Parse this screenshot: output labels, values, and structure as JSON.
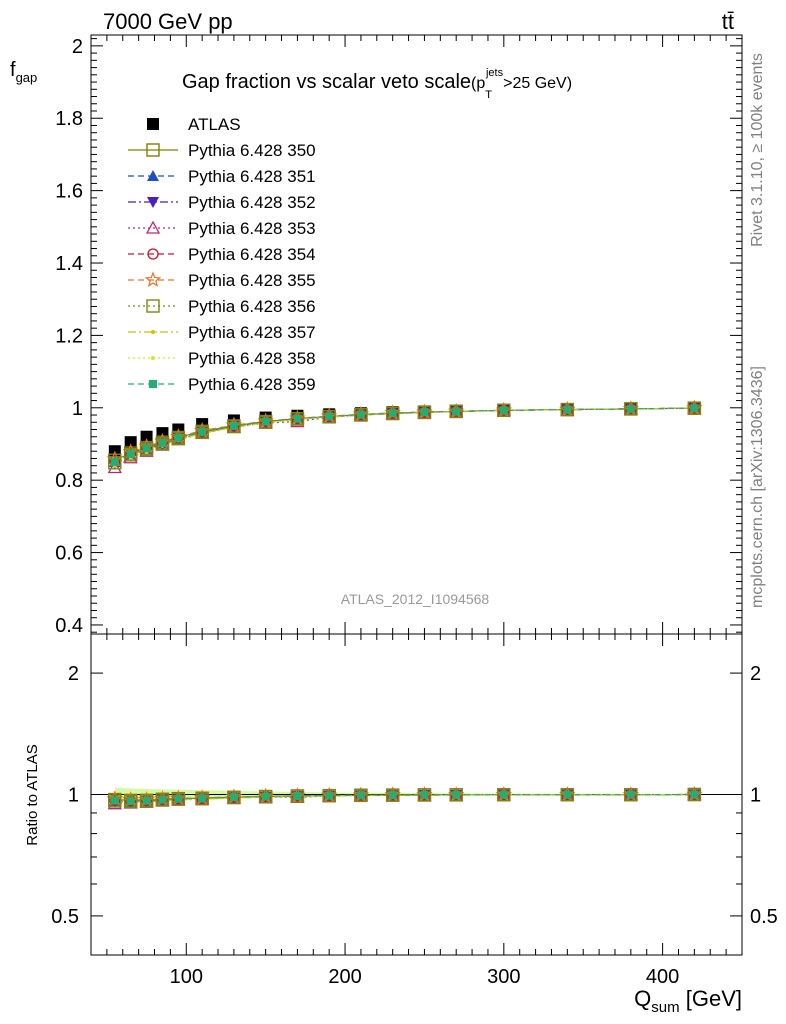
{
  "header": {
    "energy_label": "7000 GeV pp",
    "process_label": "tt̄"
  },
  "side_labels": {
    "rivet": "Rivet 3.1.10, ≥ 100k events",
    "mcplots": "mcplots.cern.ch [arXiv:1306.3436]"
  },
  "watermark": "ATLAS_2012_I1094568",
  "colors": {
    "ATLAS": "#000000",
    "s350": "#808000",
    "s351": "#1f4fbf",
    "s352": "#4b1fbf",
    "s353": "#c0247a",
    "s354": "#d0102a",
    "s355": "#f07020",
    "s356": "#7a8a10",
    "s357": "#c8c800",
    "s358": "#d8e820",
    "s359": "#20b070",
    "band": "#d8f8a0"
  },
  "chart_data": [
    {
      "type": "scatter",
      "title": "Gap fraction vs scalar veto scale",
      "title_suffix": "(p",
      "title_sub": "T",
      "title_sup": "jets",
      "title_tail": ">25 GeV)",
      "ylabel": "f",
      "ylabel_sub": "gap",
      "xlim": [
        40,
        450
      ],
      "ylim": [
        0.375,
        2.03
      ],
      "y_ticks": [
        0.4,
        0.6,
        0.8,
        1,
        1.2,
        1.4,
        1.6,
        1.8,
        2
      ],
      "y_tick_labels": [
        "0.4",
        "0.6",
        "0.8",
        "1",
        "1.2",
        "1.4",
        "1.6",
        "1.8",
        "2"
      ],
      "x": [
        55,
        65,
        75,
        85,
        95,
        110,
        130,
        150,
        170,
        190,
        210,
        230,
        250,
        270,
        300,
        340,
        380,
        420
      ],
      "legend_placement": "top-left",
      "series": [
        {
          "name": "ATLAS",
          "key": "ATLAS",
          "marker": "fsquare",
          "line": "none",
          "values": [
            0.88,
            0.905,
            0.92,
            0.93,
            0.94,
            0.955,
            0.965,
            0.973,
            0.978,
            0.982,
            0.985,
            0.988,
            0.99,
            0.992,
            0.994,
            0.996,
            0.998,
            0.999
          ]
        },
        {
          "name": "Pythia 6.428 350",
          "key": "s350",
          "marker": "osquare",
          "line": "solid",
          "values": [
            0.855,
            0.875,
            0.89,
            0.905,
            0.918,
            0.935,
            0.95,
            0.962,
            0.97,
            0.976,
            0.981,
            0.985,
            0.988,
            0.99,
            0.993,
            0.995,
            0.997,
            0.999
          ]
        },
        {
          "name": "Pythia 6.428 351",
          "key": "s351",
          "marker": "ftriangle",
          "line": "dashed",
          "values": [
            0.85,
            0.872,
            0.888,
            0.903,
            0.917,
            0.934,
            0.95,
            0.962,
            0.97,
            0.976,
            0.981,
            0.985,
            0.988,
            0.99,
            0.993,
            0.995,
            0.997,
            0.999
          ]
        },
        {
          "name": "Pythia 6.428 352",
          "key": "s352",
          "marker": "ftrianglev",
          "line": "dashdot",
          "values": [
            0.845,
            0.868,
            0.885,
            0.9,
            0.915,
            0.932,
            0.948,
            0.96,
            0.969,
            0.975,
            0.98,
            0.984,
            0.987,
            0.99,
            0.993,
            0.995,
            0.997,
            0.999
          ]
        },
        {
          "name": "Pythia 6.428 353",
          "key": "s353",
          "marker": "otriangle",
          "line": "dotted",
          "values": [
            0.835,
            0.862,
            0.88,
            0.897,
            0.912,
            0.93,
            0.946,
            0.958,
            0.962,
            0.974,
            0.98,
            0.984,
            0.987,
            0.99,
            0.993,
            0.995,
            0.997,
            0.999
          ]
        },
        {
          "name": "Pythia 6.428 354",
          "key": "s354",
          "marker": "ocircle",
          "line": "dashed",
          "values": [
            0.852,
            0.874,
            0.89,
            0.905,
            0.918,
            0.935,
            0.95,
            0.962,
            0.97,
            0.976,
            0.981,
            0.985,
            0.988,
            0.99,
            0.993,
            0.995,
            0.997,
            0.999
          ]
        },
        {
          "name": "Pythia 6.428 355",
          "key": "s355",
          "marker": "ostar",
          "line": "dashed",
          "values": [
            0.858,
            0.878,
            0.893,
            0.907,
            0.92,
            0.937,
            0.952,
            0.963,
            0.971,
            0.977,
            0.982,
            0.986,
            0.988,
            0.99,
            0.993,
            0.995,
            0.997,
            0.999
          ]
        },
        {
          "name": "Pythia 6.428 356",
          "key": "s356",
          "marker": "osquare",
          "line": "dotted",
          "values": [
            0.848,
            0.87,
            0.886,
            0.901,
            0.915,
            0.932,
            0.948,
            0.96,
            0.969,
            0.975,
            0.98,
            0.984,
            0.987,
            0.99,
            0.993,
            0.995,
            0.997,
            0.999
          ]
        },
        {
          "name": "Pythia 6.428 357",
          "key": "s357",
          "marker": "dot",
          "line": "dashdot",
          "values": [
            0.845,
            0.866,
            0.882,
            0.898,
            0.912,
            0.93,
            0.946,
            0.959,
            0.968,
            0.975,
            0.98,
            0.984,
            0.987,
            0.99,
            0.993,
            0.995,
            0.997,
            0.999
          ]
        },
        {
          "name": "Pythia 6.428 358",
          "key": "s358",
          "marker": "dot",
          "line": "dotted",
          "values": [
            0.84,
            0.862,
            0.878,
            0.895,
            0.91,
            0.928,
            0.945,
            0.958,
            0.967,
            0.974,
            0.979,
            0.984,
            0.987,
            0.99,
            0.993,
            0.995,
            0.997,
            0.999
          ]
        },
        {
          "name": "Pythia 6.428 359",
          "key": "s359",
          "marker": "fsquare_small",
          "line": "dashed",
          "values": [
            0.85,
            0.872,
            0.888,
            0.903,
            0.917,
            0.934,
            0.95,
            0.962,
            0.97,
            0.976,
            0.981,
            0.985,
            0.988,
            0.99,
            0.993,
            0.995,
            0.997,
            0.999
          ]
        }
      ]
    },
    {
      "type": "scatter",
      "ylabel": "Ratio to ATLAS",
      "xlabel": "Q",
      "xlabel_sub": "sum",
      "xlabel_unit": " [GeV]",
      "log_y": true,
      "xlim": [
        40,
        450
      ],
      "ylim": [
        0.4,
        2.5
      ],
      "x_ticks": [
        100,
        200,
        300,
        400
      ],
      "x_tick_labels": [
        "100",
        "200",
        "300",
        "400"
      ],
      "y_ticks": [
        0.5,
        1,
        2
      ],
      "y_tick_labels": [
        "0.5",
        "1",
        "2"
      ],
      "reference_line": 1,
      "band_halfwidth": [
        0.04,
        0.035,
        0.032,
        0.03,
        0.028,
        0.025,
        0.02,
        0.018,
        0.015,
        0.012,
        0.01,
        0.009,
        0.008,
        0.007,
        0.006,
        0.005,
        0.004,
        0.003
      ]
    }
  ]
}
